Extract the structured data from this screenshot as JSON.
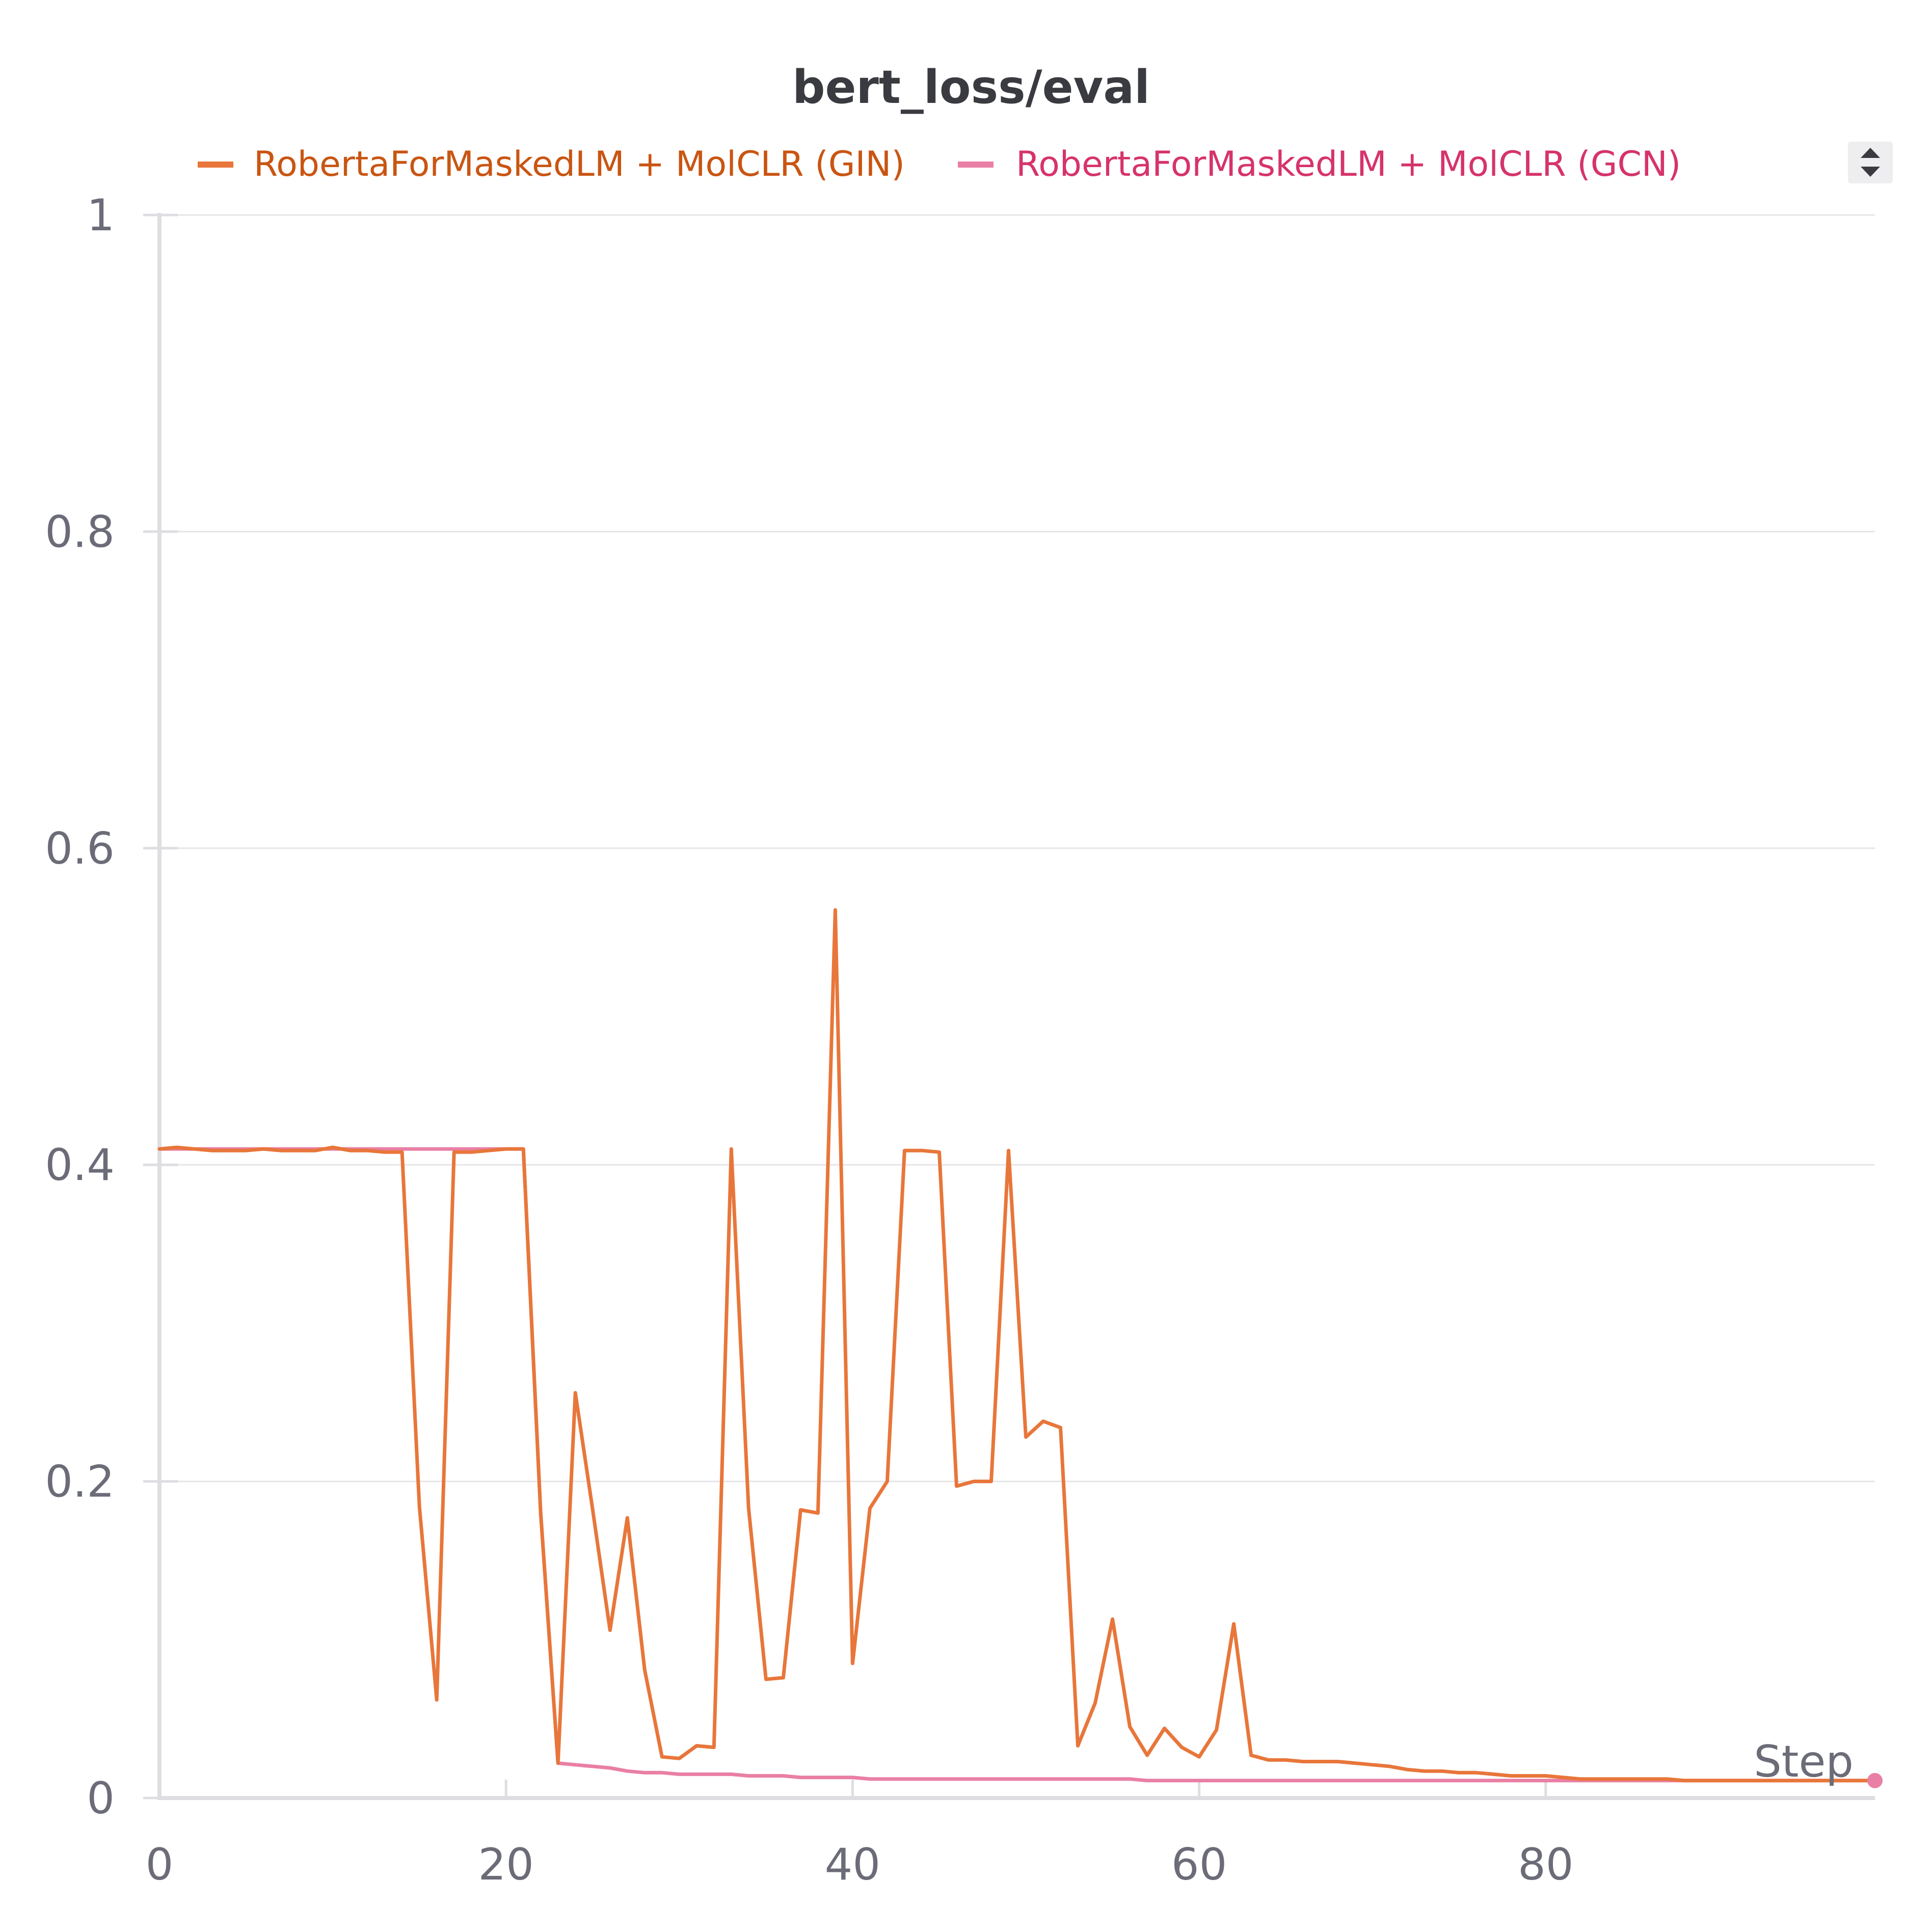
{
  "chart_data": {
    "type": "line",
    "title": "bert_loss/eval",
    "xlabel": "Step",
    "ylabel": "",
    "xlim": [
      0,
      99
    ],
    "ylim": [
      0,
      1
    ],
    "x_ticks": [
      "0",
      "20",
      "40",
      "60",
      "80"
    ],
    "y_ticks": [
      "0",
      "0.2",
      "0.4",
      "0.6",
      "0.8",
      "1"
    ],
    "grid": true,
    "legend_position": "top",
    "series": [
      {
        "name": "RobertaForMaskedLM + MolCLR (GIN)",
        "color": "#e8763a",
        "text_color": "#c95512",
        "x": [
          0,
          1,
          2,
          3,
          4,
          5,
          6,
          7,
          8,
          9,
          10,
          11,
          12,
          13,
          14,
          15,
          16,
          17,
          18,
          19,
          20,
          21,
          22,
          23,
          24,
          25,
          26,
          27,
          28,
          29,
          30,
          31,
          32,
          33,
          34,
          35,
          36,
          37,
          38,
          39,
          40,
          41,
          42,
          43,
          44,
          45,
          46,
          47,
          48,
          49,
          50,
          51,
          52,
          53,
          54,
          55,
          56,
          57,
          58,
          59,
          60,
          61,
          62,
          63,
          64,
          65,
          66,
          67,
          68,
          69,
          70,
          71,
          72,
          73,
          74,
          75,
          76,
          77,
          78,
          79,
          80,
          81,
          82,
          83,
          84,
          85,
          86,
          87,
          88,
          89,
          90,
          91,
          92,
          93,
          94,
          95,
          96,
          97,
          98,
          99
        ],
        "y": [
          0.41,
          0.411,
          0.41,
          0.409,
          0.409,
          0.409,
          0.41,
          0.409,
          0.409,
          0.409,
          0.411,
          0.409,
          0.409,
          0.408,
          0.408,
          0.184,
          0.062,
          0.408,
          0.408,
          0.409,
          0.41,
          0.41,
          0.18,
          0.022,
          0.256,
          0.182,
          0.106,
          0.177,
          0.081,
          0.026,
          0.025,
          0.033,
          0.032,
          0.41,
          0.183,
          0.075,
          0.076,
          0.182,
          0.18,
          0.561,
          0.085,
          0.183,
          0.2,
          0.409,
          0.409,
          0.408,
          0.197,
          0.2,
          0.2,
          0.409,
          0.228,
          0.238,
          0.234,
          0.033,
          0.06,
          0.113,
          0.045,
          0.027,
          0.044,
          0.032,
          0.026,
          0.043,
          0.11,
          0.027,
          0.024,
          0.024,
          0.023,
          0.023,
          0.023,
          0.022,
          0.021,
          0.02,
          0.018,
          0.017,
          0.017,
          0.016,
          0.016,
          0.015,
          0.014,
          0.014,
          0.014,
          0.013,
          0.012,
          0.012,
          0.012,
          0.012,
          0.012,
          0.012,
          0.011,
          0.011,
          0.011,
          0.011,
          0.011,
          0.011,
          0.011,
          0.011,
          0.011,
          0.011,
          0.011,
          0.011
        ]
      },
      {
        "name": "RobertaForMaskedLM + MolCLR (GCN)",
        "color": "#e97fa5",
        "text_color": "#d6336c",
        "x": [
          0,
          1,
          2,
          3,
          4,
          5,
          6,
          7,
          8,
          9,
          10,
          11,
          12,
          13,
          14,
          15,
          16,
          17,
          18,
          19,
          20,
          21,
          22,
          23,
          24,
          25,
          26,
          27,
          28,
          29,
          30,
          31,
          32,
          33,
          34,
          35,
          36,
          37,
          38,
          39,
          40,
          41,
          42,
          43,
          44,
          45,
          46,
          47,
          48,
          49,
          50,
          51,
          52,
          53,
          54,
          55,
          56,
          57,
          58,
          59,
          60,
          61,
          62,
          63,
          64,
          65,
          66,
          67,
          68,
          69,
          70,
          71,
          72,
          73,
          74,
          75,
          76,
          77,
          78,
          79,
          80,
          81,
          82,
          83,
          84,
          85,
          86,
          87,
          88,
          89,
          90,
          91,
          92,
          93,
          94,
          95,
          96,
          97,
          98,
          99
        ],
        "y": [
          0.41,
          0.41,
          0.41,
          0.41,
          0.41,
          0.41,
          0.41,
          0.41,
          0.41,
          0.41,
          0.41,
          0.41,
          0.41,
          0.41,
          0.41,
          0.41,
          0.41,
          0.41,
          0.41,
          0.41,
          0.41,
          0.41,
          0.18,
          0.022,
          0.021,
          0.02,
          0.019,
          0.017,
          0.016,
          0.016,
          0.015,
          0.015,
          0.015,
          0.015,
          0.014,
          0.014,
          0.014,
          0.013,
          0.013,
          0.013,
          0.013,
          0.012,
          0.012,
          0.012,
          0.012,
          0.012,
          0.012,
          0.012,
          0.012,
          0.012,
          0.012,
          0.012,
          0.012,
          0.012,
          0.012,
          0.012,
          0.012,
          0.011,
          0.011,
          0.011,
          0.011,
          0.011,
          0.011,
          0.011,
          0.011,
          0.011,
          0.011,
          0.011,
          0.011,
          0.011,
          0.011,
          0.011,
          0.011,
          0.011,
          0.011,
          0.011,
          0.011,
          0.011,
          0.011,
          0.011,
          0.011,
          0.011,
          0.011,
          0.011,
          0.011,
          0.011,
          0.011,
          0.011,
          0.011,
          0.011,
          0.011,
          0.011,
          0.011,
          0.011,
          0.011,
          0.011,
          0.011,
          0.011,
          0.011,
          0.011
        ]
      }
    ]
  },
  "legend": {
    "scroll_icon": "sort-arrows-icon"
  }
}
